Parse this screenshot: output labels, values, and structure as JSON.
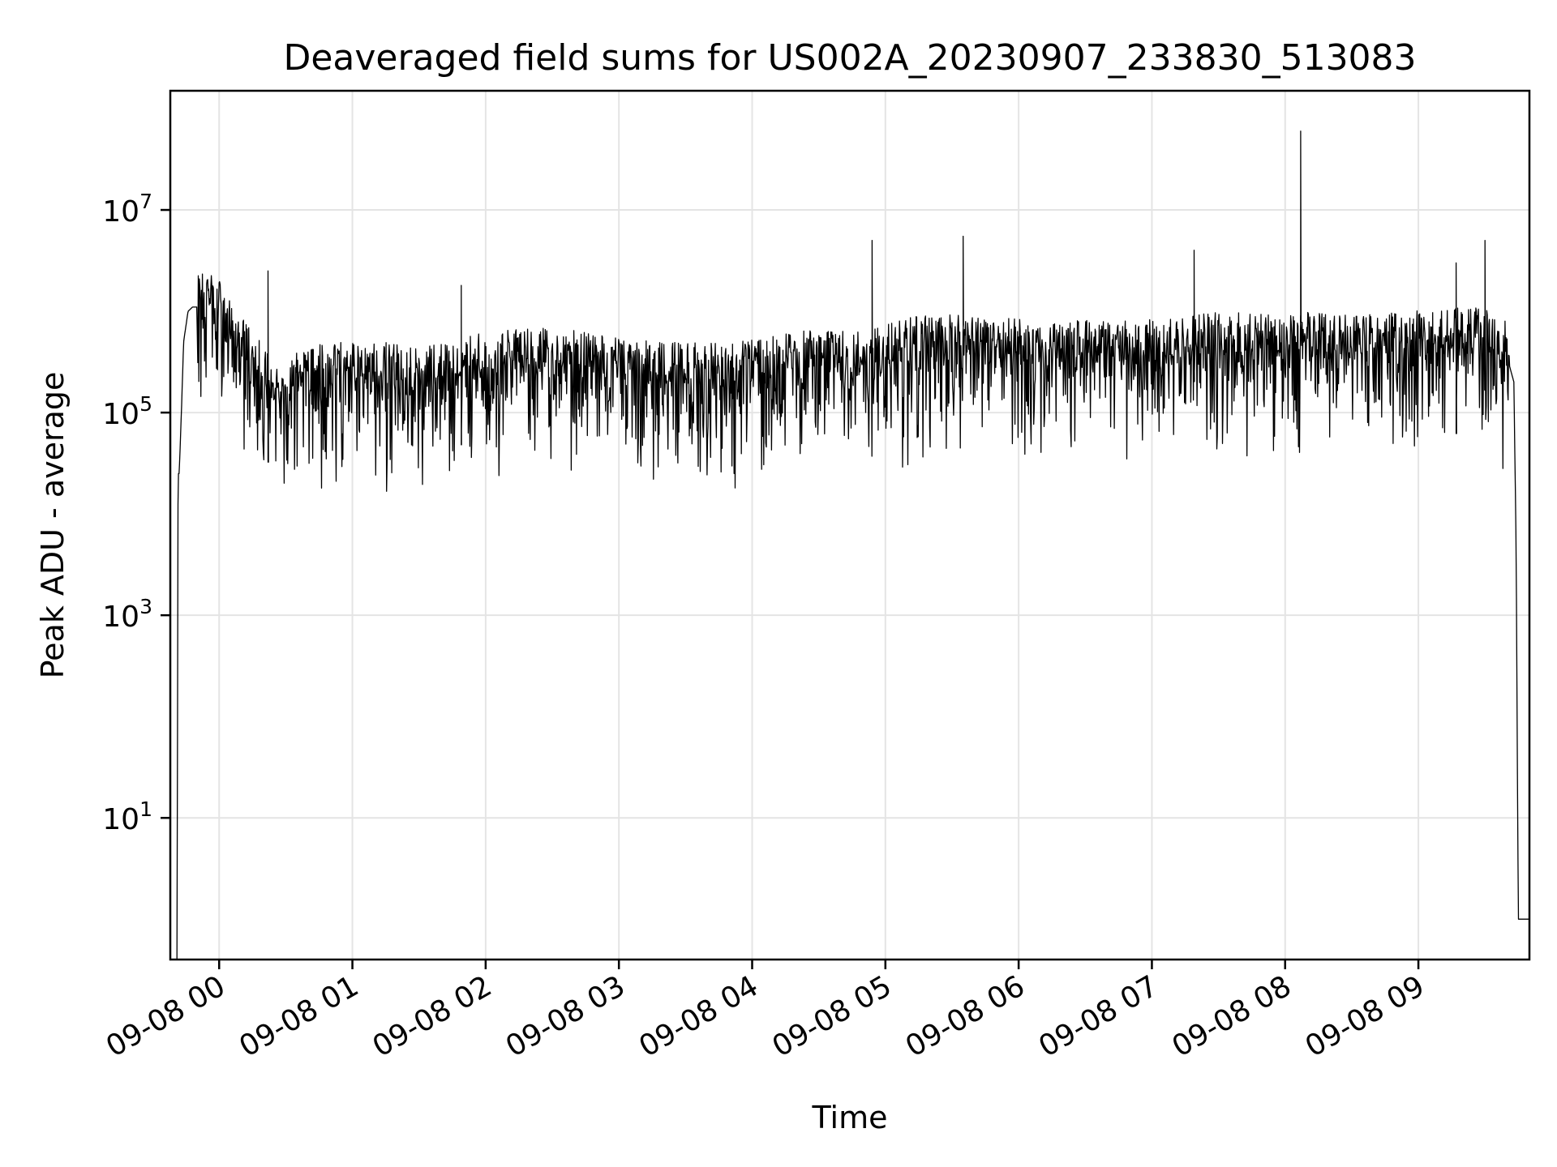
{
  "chart_data": {
    "type": "line",
    "title": "Deaveraged field sums for US002A_20230907_233830_513083",
    "xlabel": "Time",
    "ylabel": "Peak ADU - average",
    "xscale": "time",
    "yscale": "log",
    "grid": true,
    "legend": "none",
    "series_color": "#000000",
    "grid_color": "#e4e4e4",
    "xlim": [
      "2023-09-07T23:38",
      "2023-09-08T09:50"
    ],
    "ylim": [
      0.4,
      150000000
    ],
    "x_ticks": [
      {
        "value": "2023-09-08T00:00",
        "label": "09-08 00"
      },
      {
        "value": "2023-09-08T01:00",
        "label": "09-08 01"
      },
      {
        "value": "2023-09-08T02:00",
        "label": "09-08 02"
      },
      {
        "value": "2023-09-08T03:00",
        "label": "09-08 03"
      },
      {
        "value": "2023-09-08T04:00",
        "label": "09-08 04"
      },
      {
        "value": "2023-09-08T05:00",
        "label": "09-08 05"
      },
      {
        "value": "2023-09-08T06:00",
        "label": "09-08 06"
      },
      {
        "value": "2023-09-08T07:00",
        "label": "09-08 07"
      },
      {
        "value": "2023-09-08T08:00",
        "label": "09-08 08"
      },
      {
        "value": "2023-09-08T09:00",
        "label": "09-08 09"
      }
    ],
    "y_ticks": [
      {
        "value": 10,
        "base": "10",
        "exp": "1"
      },
      {
        "value": 1000,
        "base": "10",
        "exp": "3"
      },
      {
        "value": 100000,
        "base": "10",
        "exp": "5"
      },
      {
        "value": 10000000,
        "base": "10",
        "exp": "7"
      }
    ],
    "series": [
      {
        "x": [
          "2023-09-07T23:41",
          "2023-09-07T23:41:30",
          "2023-09-07T23:42",
          "2023-09-07T23:43",
          "2023-09-07T23:44",
          "2023-09-07T23:46",
          "2023-09-07T23:48",
          "2023-09-07T23:52",
          "2023-09-07T23:56",
          "2023-09-08T00:00",
          "2023-09-08T00:05",
          "2023-09-08T00:10",
          "2023-09-08T00:15",
          "2023-09-08T00:20",
          "2023-09-08T00:25",
          "2023-09-08T00:30",
          "2023-09-08T00:35",
          "2023-09-08T00:40",
          "2023-09-08T00:50",
          "2023-09-08T01:00",
          "2023-09-08T01:15",
          "2023-09-08T01:30",
          "2023-09-08T01:45",
          "2023-09-08T02:00",
          "2023-09-08T02:15",
          "2023-09-08T02:30",
          "2023-09-08T02:45",
          "2023-09-08T03:00",
          "2023-09-08T03:15",
          "2023-09-08T03:30",
          "2023-09-08T03:45",
          "2023-09-08T04:00",
          "2023-09-08T04:15",
          "2023-09-08T04:30",
          "2023-09-08T04:45",
          "2023-09-08T05:00",
          "2023-09-08T05:15",
          "2023-09-08T05:30",
          "2023-09-08T05:45",
          "2023-09-08T06:00",
          "2023-09-08T06:15",
          "2023-09-08T06:30",
          "2023-09-08T06:45",
          "2023-09-08T07:00",
          "2023-09-08T07:15",
          "2023-09-08T07:30",
          "2023-09-08T07:45",
          "2023-09-08T08:00",
          "2023-09-08T08:15",
          "2023-09-08T08:30",
          "2023-09-08T08:45",
          "2023-09-08T09:00",
          "2023-09-08T09:15",
          "2023-09-08T09:30",
          "2023-09-08T09:40",
          "2023-09-08T09:43",
          "2023-09-08T09:44",
          "2023-09-08T09:45",
          "2023-09-08T09:50"
        ],
        "values": [
          0.4,
          25000,
          25000,
          100000,
          500000,
          1000000,
          1100000,
          1100000,
          1200000,
          1000000,
          600000,
          400000,
          300000,
          200000,
          150000,
          120000,
          180000,
          200000,
          220000,
          230000,
          220000,
          200000,
          230000,
          280000,
          300000,
          320000,
          300000,
          260000,
          230000,
          220000,
          220000,
          240000,
          270000,
          300000,
          280000,
          350000,
          400000,
          420000,
          380000,
          380000,
          360000,
          380000,
          360000,
          370000,
          400000,
          450000,
          420000,
          420000,
          450000,
          400000,
          430000,
          460000,
          480000,
          500000,
          350000,
          200000,
          5000,
          1,
          1
        ]
      }
    ],
    "spikes": [
      {
        "x": "2023-09-08T00:22",
        "y": 2500000
      },
      {
        "x": "2023-09-08T01:49",
        "y": 1800000
      },
      {
        "x": "2023-09-08T04:54",
        "y": 5000000
      },
      {
        "x": "2023-09-08T05:35",
        "y": 5500000
      },
      {
        "x": "2023-09-08T07:19",
        "y": 4000000
      },
      {
        "x": "2023-09-08T08:07",
        "y": 60000000
      },
      {
        "x": "2023-09-08T09:17",
        "y": 3000000
      },
      {
        "x": "2023-09-08T09:30",
        "y": 5000000
      }
    ]
  }
}
